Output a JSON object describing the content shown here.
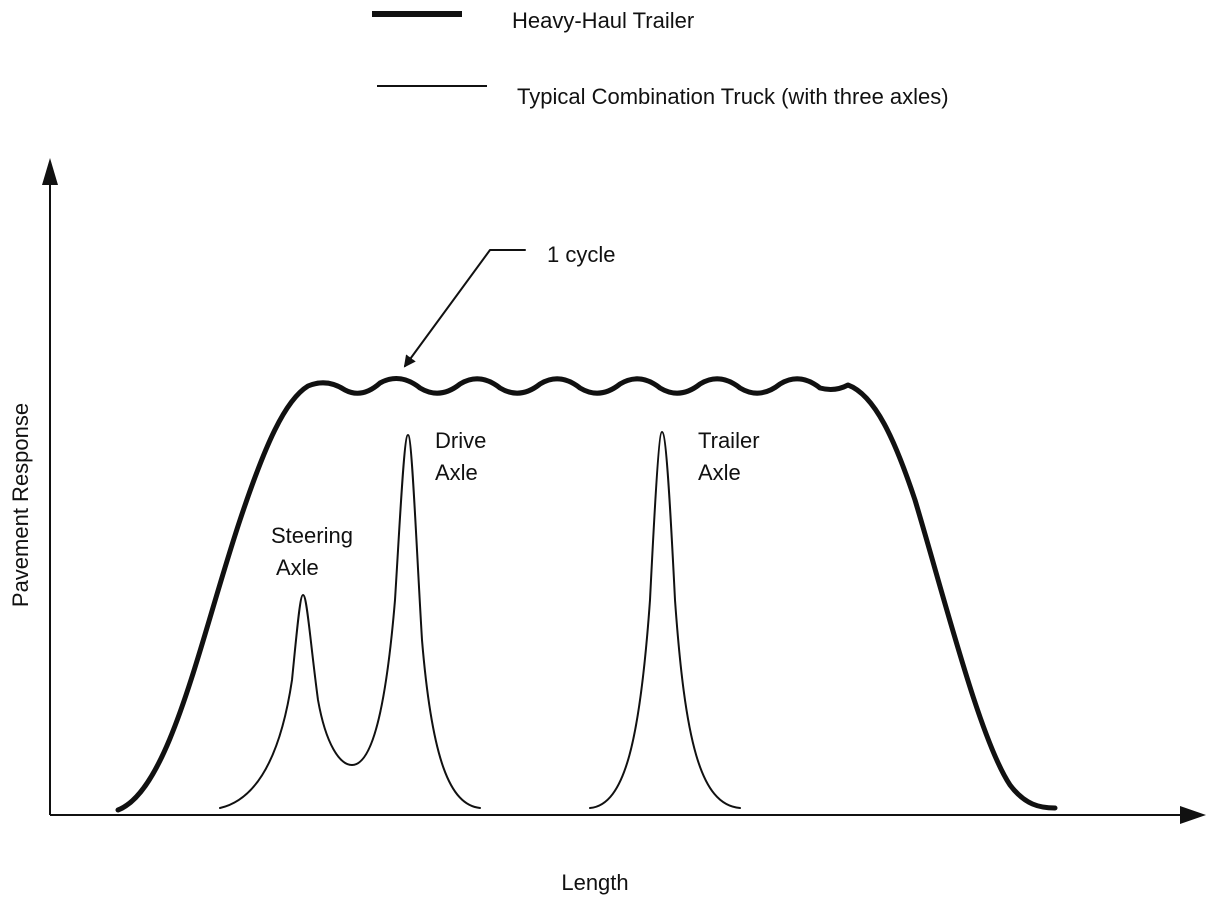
{
  "legend": [
    {
      "label": "Heavy-Haul Trailer"
    },
    {
      "label": "Typical Combination Truck (with three axles)"
    }
  ],
  "annotations": {
    "cycle": "1 cycle",
    "steering": [
      "Steering",
      "Axle"
    ],
    "drive": [
      "Drive",
      "Axle"
    ],
    "trailer": [
      "Trailer",
      "Axle"
    ]
  },
  "axes": {
    "x": "Length",
    "y": "Pavement Response"
  }
}
